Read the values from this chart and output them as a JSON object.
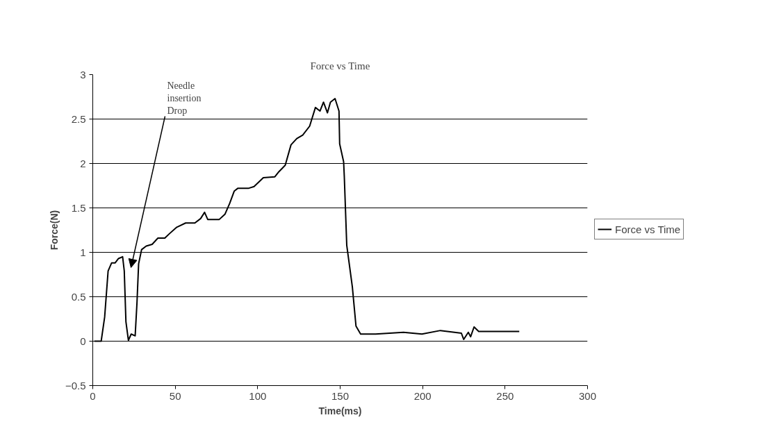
{
  "chart_data": {
    "type": "line",
    "title": "Force vs Time",
    "xlabel": "Time(ms)",
    "ylabel": "Force(N)",
    "xlim": [
      0,
      300
    ],
    "xticks": [
      0,
      50,
      100,
      150,
      200,
      250,
      300
    ],
    "ylim": [
      -0.5,
      3
    ],
    "yticks": [
      -0.5,
      0,
      0.5,
      1,
      1.5,
      2,
      2.5,
      3
    ],
    "grid": "y",
    "legend": "right",
    "marker": "none",
    "line_style": "solid",
    "annotations": [
      "Needle insertion Drop"
    ],
    "series": [
      {
        "name": "Force vs Time",
        "color": "#000000",
        "x": [
          1,
          5.1,
          7.2,
          9.3,
          11.4,
          13.5,
          15.6,
          18.1,
          19.1,
          20.1,
          21.6,
          23.3,
          25.7,
          26.8,
          27.8,
          29.6,
          32.4,
          36,
          39.5,
          43.7,
          46.5,
          50.7,
          56.3,
          61.9,
          65.4,
          67.8,
          69.7,
          72.5,
          76.7,
          80.2,
          83,
          85.8,
          87.9,
          94.3,
          97.8,
          103.4,
          110.4,
          112.5,
          116.7,
          120.2,
          123.7,
          127.3,
          131.5,
          135,
          137.8,
          139.9,
          142.3,
          144.1,
          146.9,
          149.3,
          149.7,
          152.1,
          152.5,
          154,
          157.4,
          159.6,
          162.4,
          171.5,
          188.4,
          199.6,
          210.8,
          219.3,
          223.5,
          224.9,
          227.7,
          229.1,
          231.2,
          234,
          258.6
        ],
        "values": [
          0,
          0,
          0.27,
          0.79,
          0.88,
          0.88,
          0.93,
          0.95,
          0.79,
          0.22,
          0.01,
          0.08,
          0.06,
          0.43,
          0.87,
          1.03,
          1.07,
          1.09,
          1.16,
          1.16,
          1.21,
          1.28,
          1.33,
          1.33,
          1.38,
          1.45,
          1.37,
          1.37,
          1.37,
          1.43,
          1.55,
          1.69,
          1.72,
          1.72,
          1.74,
          1.84,
          1.85,
          1.9,
          1.98,
          2.21,
          2.28,
          2.32,
          2.42,
          2.63,
          2.59,
          2.69,
          2.57,
          2.69,
          2.73,
          2.59,
          2.22,
          2.02,
          1.86,
          1.08,
          0.61,
          0.17,
          0.08,
          0.08,
          0.1,
          0.08,
          0.12,
          0.1,
          0.09,
          0.02,
          0.1,
          0.05,
          0.16,
          0.11,
          0.11
        ]
      }
    ]
  }
}
